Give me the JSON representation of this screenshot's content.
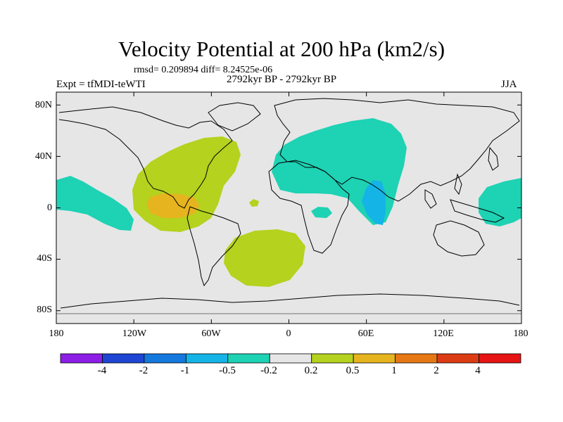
{
  "title": "Velocity Potential at 200 hPa (km2/s)",
  "stats_line": "rmsd= 0.209894 diff= 8.24525e-06",
  "experiment": "Expt = tfMDI-teWTI",
  "period": "2792kyr BP - 2792kyr BP",
  "season": "JJA",
  "map": {
    "lon_range": [
      -180,
      180
    ],
    "lat_range": [
      -90,
      90
    ],
    "y_ticks": [
      {
        "value": 80,
        "label": "80N"
      },
      {
        "value": 40,
        "label": "40N"
      },
      {
        "value": 0,
        "label": "0"
      },
      {
        "value": -40,
        "label": "40S"
      },
      {
        "value": -80,
        "label": "80S"
      }
    ],
    "x_ticks": [
      {
        "value": -180,
        "label": "180"
      },
      {
        "value": -120,
        "label": "120W"
      },
      {
        "value": -60,
        "label": "60W"
      },
      {
        "value": 0,
        "label": "0"
      },
      {
        "value": 60,
        "label": "60E"
      },
      {
        "value": 120,
        "label": "120E"
      },
      {
        "value": 180,
        "label": "180"
      }
    ],
    "background_color": "#e6e6e6"
  },
  "colorbar": {
    "colors": [
      "#8c1ee6",
      "#1e46d2",
      "#1478dc",
      "#14b4e6",
      "#1ed2b4",
      "#e6e6e6",
      "#b4d21e",
      "#e6b41e",
      "#e67814",
      "#dc3c14",
      "#e61414"
    ],
    "labels": [
      "-4",
      "-2",
      "-1",
      "-0.5",
      "-0.2",
      "0.2",
      "0.5",
      "1",
      "2",
      "4"
    ]
  },
  "chart_data": {
    "type": "heatmap",
    "title": "Velocity Potential at 200 hPa (km2/s)",
    "variable": "velocity potential anomaly",
    "units": "km2/s",
    "levels": [
      -4,
      -2,
      -1,
      -0.5,
      -0.2,
      0.2,
      0.5,
      1,
      2,
      4
    ],
    "regions": [
      {
        "name": "Central America / North Atlantic",
        "range": "0.2 to 0.5",
        "color": "#b4d21e"
      },
      {
        "name": "Eastern Tropical Pacific core",
        "range": "0.5 to 1",
        "color": "#e6b41e"
      },
      {
        "name": "South Atlantic",
        "range": "0.2 to 0.5",
        "color": "#b4d21e"
      },
      {
        "name": "Eurasia / Africa / Indian Ocean",
        "range": "-0.5 to -0.2",
        "color": "#1ed2b4"
      },
      {
        "name": "Arabian Sea / Indian Ocean core",
        "range": "-1 to -0.5",
        "color": "#14b4e6"
      },
      {
        "name": "Central Pacific",
        "range": "-0.5 to -0.2",
        "color": "#1ed2b4"
      },
      {
        "name": "Western Pacific",
        "range": "-0.5 to -0.2",
        "color": "#1ed2b4"
      }
    ]
  }
}
